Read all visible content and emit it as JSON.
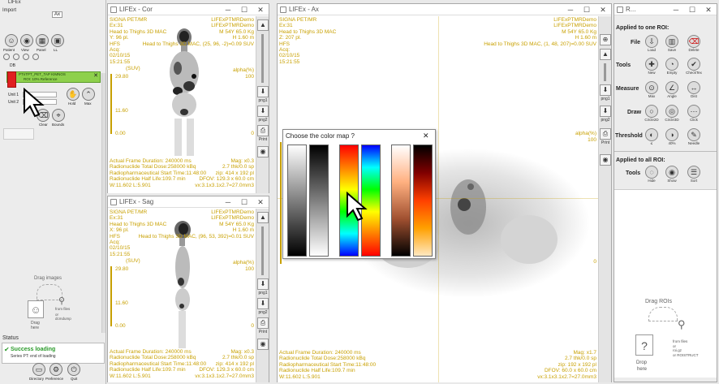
{
  "app_title": "LIFEx",
  "left_panel": {
    "menu": "Import",
    "icon_caps": [
      "Patient",
      "View",
      "Panel",
      "LL"
    ],
    "header_icons": [
      "Ax"
    ],
    "series_label": "DB",
    "series_item": "PTnTPT_PET_TAP KIMNOS",
    "series_sub": "ROI: 10% Reference",
    "unit_labels": [
      "Unit 1",
      "Unit 2"
    ],
    "buttons": [
      "Clear",
      "Bounds",
      "Hold",
      "Max"
    ],
    "drag_text": "Drag images",
    "drag_sub": [
      "Drag",
      "here"
    ],
    "from_text": "from files",
    "from_sub": "or\ndcmdump",
    "status_title": "Status",
    "status_text": "Success loading",
    "status_sub": "Series PT: end of loading",
    "bottom_buttons": [
      "Directory",
      "Preference",
      "Quit"
    ]
  },
  "view_cor": {
    "title": "LIFEx - Cor",
    "tl": "SIGNA PET/MR\nEx:31\nHead to Thighs 3D MAC\nY: 96 pl.\nHFS",
    "tr": "LIFExPTMRDemo\nLIFExPTMRDemo\nM 54Y 65.0 Kg\nH 1.60 m\nHead to Thighs 3D MAC, (25, 96, -2)=0.09 SUV",
    "date": "Acq:\n02/10/15\n15:21:55",
    "scale": [
      "29.80",
      "11.60",
      "0.00"
    ],
    "scale_unit": "(SUV)",
    "alpha": "alpha(%)",
    "alpha_vals": [
      "100",
      "0"
    ],
    "bl": "Actual Frame Duration: 240000 ms\nRadionuclide Total Dose:258000 kBq\nRadiopharmaceutical Start Time:11:48:00\nRadionuclide Half Life:109.7 min\nW:11.602 L:5.901",
    "br": "Mag: x0.3\n2.7 thk/0.0 sp\nzip: 414 x 192 pl\nDFOV: 129.3 x 60.0 cm\nvx:3.1x3.1x2.7=27.0mm3"
  },
  "view_sag": {
    "title": "LIFEx - Sag",
    "tl": "SIGNA PET/MR\nEx:31\nHead to Thighs 3D MAC\nX: 96 pl.\nHFS",
    "tr": "LIFExPTMRDemo\nLIFExPTMRDemo\nM 54Y 65.0 Kg\nH 1.60 m\nHead to Thighs 3D MAC, (96, 53, 392)=0.01 SUV",
    "date": "Acq:\n02/10/15\n15:21:55",
    "scale": [
      "29.80",
      "11.60",
      "0.00"
    ],
    "scale_unit": "(SUV)",
    "alpha": "alpha(%)",
    "alpha_vals": [
      "100",
      "0"
    ],
    "bl": "Actual Frame Duration: 240000 ms\nRadionuclide Total Dose:258000 kBq\nRadiopharmaceutical Start Time:11:48:00\nRadionuclide Half Life:109.7 min\nW:11.602 L:5.901",
    "br": "Mag: x0.3\n2.7 thk/0.0 sp\nzip: 414 x 192 pl\nDFOV: 129.3 x 60.0 cm\nvx:3.1x3.1x2.7=27.0mm3"
  },
  "view_ax": {
    "title": "LIFEx - Ax",
    "tl": "SIGNA PET/MR\nEx:31\nHead to Thighs 3D MAC\nZ: 207 pl.\nHFS",
    "tr": "LIFExPTMRDemo\nLIFExPTMRDemo\nM 54Y 65.0 Kg\nH 1.60 m\nHead to Thighs 3D MAC, (1, 48, 207)=0.00 SUV",
    "date": "Acq:\n02/10/15\n15:21:55",
    "alpha": "alpha(%)",
    "alpha_vals": [
      "100",
      "0"
    ],
    "bl": "Actual Frame Duration: 240000 ms\nRadionuclide Total Dose:258000 kBq\nRadiopharmaceutical Start Time:11:48:00\nRadionuclide Half Life:109.7 min\nW:11.602 L:5.901",
    "br": "Mag: x1.7\n2.7 thk/0.0 sp\nzip: 192 x 192 pl\nDFOV: 60.0 x 60.0 cm\nvx:3.1x3.1x2.7=27.0mm3"
  },
  "strip_labels": [
    "png1",
    "png2",
    "Print"
  ],
  "colormap_dialog": {
    "title": "Choose the color map ?",
    "close": "✕"
  },
  "roi_panel": {
    "title": "R...",
    "applied_one": "Applied to one ROI:",
    "rows": [
      {
        "label": "File",
        "items": [
          "Load",
          "Save",
          "Delete"
        ]
      },
      {
        "label": "Tools",
        "items": [
          "New",
          "Empty",
          "CheckTex"
        ]
      },
      {
        "label": "Measure",
        "items": [
          "Max",
          "Angle",
          "Dist"
        ]
      },
      {
        "label": "Draw",
        "items": [
          "Circle2D",
          "Circle3D",
          "Click"
        ]
      },
      {
        "label": "Threshold",
        "items": [
          "≤",
          "40%",
          "Needle"
        ]
      }
    ],
    "applied_all": "Applied to all ROI:",
    "all_row": {
      "label": "Tools",
      "items": [
        "Hide",
        "Show",
        "Sort"
      ]
    },
    "drag_title": "Drag ROIs",
    "drop_text": [
      "Drop",
      "here"
    ],
    "from_text": "from files\nor\nroi.gz\nor ROISTRUCT"
  },
  "colors": {
    "overlay_text": "#c8a000",
    "series_green": "#8ed04c",
    "status_green": "#2a9a2a",
    "red_marker": "#e02020"
  }
}
